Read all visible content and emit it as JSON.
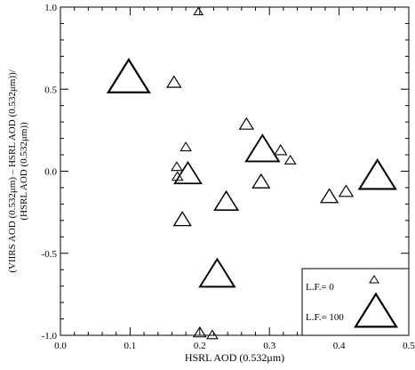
{
  "chart_data": {
    "type": "scatter",
    "xlabel": "HSRL AOD (0.532μm)",
    "ylabel_lines": [
      "(VIIRS AOD (0.532μm) – HSRL AOD (0.532μm))/",
      "(HSRL AOD (0.532μm))"
    ],
    "xlim": [
      0.0,
      0.5
    ],
    "ylim": [
      -1.0,
      1.0
    ],
    "x_ticks": [
      0.0,
      0.1,
      0.2,
      0.3,
      0.4,
      0.5
    ],
    "x_tick_labels": [
      "0.0",
      "0.1",
      "0.2",
      "0.3",
      "0.4",
      "0.5"
    ],
    "y_ticks": [
      -1.0,
      -0.5,
      0.0,
      0.5,
      1.0
    ],
    "y_tick_labels": [
      "-1.0",
      "-0.5",
      "0.0",
      "0.5",
      "1.0"
    ],
    "marker": "open-triangle",
    "marker_size_variable": "L.F.",
    "legend": {
      "placement": "bottom-right",
      "entries": [
        {
          "label": "L.F.= 0",
          "lf": 0
        },
        {
          "label": "L.F.= 100",
          "lf": 100
        }
      ]
    },
    "points": [
      {
        "x": 0.198,
        "y": 0.975,
        "lf": 0
      },
      {
        "x": 0.098,
        "y": 0.58,
        "lf": 100
      },
      {
        "x": 0.163,
        "y": 0.545,
        "lf": 15
      },
      {
        "x": 0.267,
        "y": 0.29,
        "lf": 15
      },
      {
        "x": 0.18,
        "y": 0.15,
        "lf": 5
      },
      {
        "x": 0.29,
        "y": 0.14,
        "lf": 75
      },
      {
        "x": 0.316,
        "y": 0.13,
        "lf": 10
      },
      {
        "x": 0.33,
        "y": 0.07,
        "lf": 5
      },
      {
        "x": 0.167,
        "y": 0.03,
        "lf": 5
      },
      {
        "x": 0.168,
        "y": -0.03,
        "lf": 5
      },
      {
        "x": 0.183,
        "y": -0.01,
        "lf": 55
      },
      {
        "x": 0.455,
        "y": -0.02,
        "lf": 85
      },
      {
        "x": 0.288,
        "y": -0.06,
        "lf": 25
      },
      {
        "x": 0.41,
        "y": -0.12,
        "lf": 15
      },
      {
        "x": 0.386,
        "y": -0.15,
        "lf": 25
      },
      {
        "x": 0.238,
        "y": -0.18,
        "lf": 45
      },
      {
        "x": 0.175,
        "y": -0.29,
        "lf": 25
      },
      {
        "x": 0.225,
        "y": -0.62,
        "lf": 80
      },
      {
        "x": 0.2,
        "y": -0.98,
        "lf": 10
      },
      {
        "x": 0.218,
        "y": -0.995,
        "lf": 5
      }
    ]
  }
}
